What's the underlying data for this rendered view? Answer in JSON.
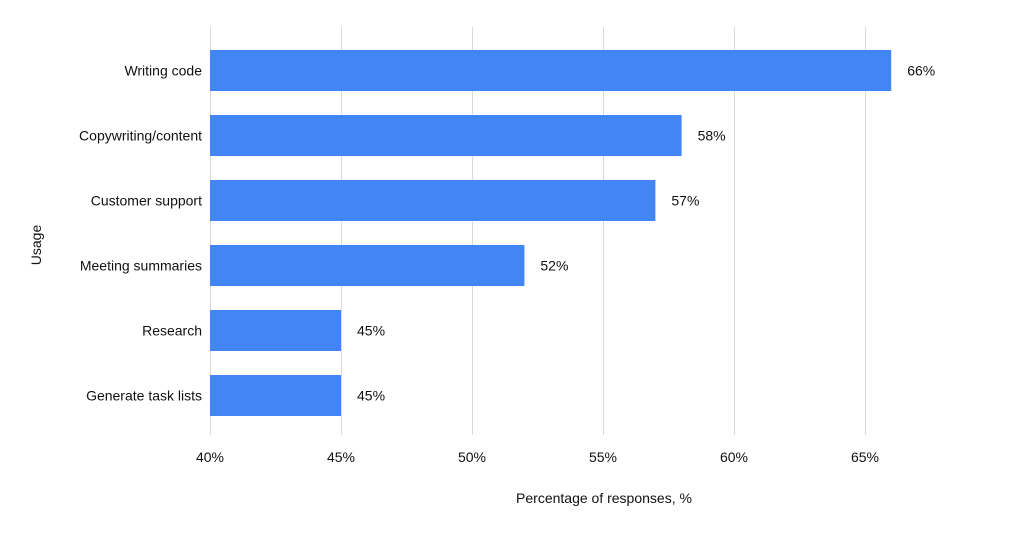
{
  "chart_data": {
    "type": "bar",
    "orientation": "horizontal",
    "title": "",
    "xlabel": "Percentage of responses, %",
    "ylabel": "Usage",
    "categories": [
      "Writing code",
      "Copywriting/content",
      "Customer support",
      "Meeting summaries",
      "Research",
      "Generate task lists"
    ],
    "values": [
      66,
      58,
      57,
      52,
      45,
      45
    ],
    "value_labels": [
      "66%",
      "58%",
      "57%",
      "52%",
      "45%",
      "45%"
    ],
    "xlim": [
      40,
      66
    ],
    "xticks": [
      40,
      45,
      50,
      55,
      60,
      65
    ],
    "xtick_labels": [
      "40%",
      "45%",
      "50%",
      "55%",
      "60%",
      "65%"
    ],
    "grid": "vertical",
    "legend": "none",
    "bar_color": "#4285f4",
    "grid_color": "#d9d9d9"
  }
}
